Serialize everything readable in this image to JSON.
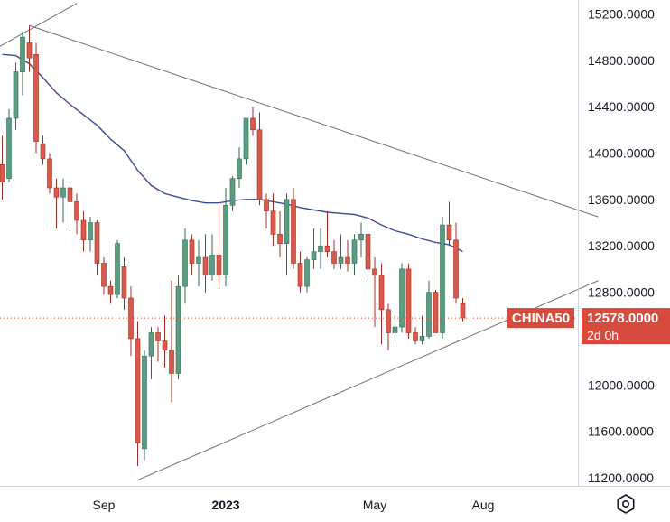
{
  "chart_data": {
    "type": "candlestick",
    "symbol": "CHINA50",
    "last_price": "12578.0000",
    "countdown": "2d 0h",
    "ylim": [
      11130,
      15320
    ],
    "y_ticks": [
      "15200.0000",
      "14800.0000",
      "14400.0000",
      "14000.0000",
      "13600.0000",
      "13200.0000",
      "12800.0000",
      "12400.0000",
      "12000.0000",
      "11600.0000",
      "11200.0000"
    ],
    "x_ticks": [
      {
        "label": "Sep",
        "index": 15,
        "bold": false
      },
      {
        "label": "2023",
        "index": 33,
        "bold": true
      },
      {
        "label": "May",
        "index": 55,
        "bold": false
      },
      {
        "label": "Aug",
        "index": 71,
        "bold": false
      }
    ],
    "candles": [
      [
        13900,
        14150,
        13600,
        13750
      ],
      [
        13780,
        14380,
        13750,
        14300
      ],
      [
        14300,
        14780,
        14200,
        14700
      ],
      [
        14700,
        15050,
        14500,
        15000
      ],
      [
        14950,
        15100,
        14700,
        14820
      ],
      [
        14850,
        14950,
        14000,
        14100
      ],
      [
        14080,
        14150,
        13900,
        13950
      ],
      [
        13950,
        14000,
        13650,
        13700
      ],
      [
        13700,
        13780,
        13350,
        13620
      ],
      [
        13620,
        13780,
        13400,
        13700
      ],
      [
        13700,
        13750,
        13350,
        13580
      ],
      [
        13580,
        13650,
        13300,
        13420
      ],
      [
        13420,
        13500,
        13150,
        13250
      ],
      [
        13250,
        13450,
        13150,
        13400
      ],
      [
        13400,
        13420,
        12950,
        13050
      ],
      [
        13050,
        13100,
        12780,
        12850
      ],
      [
        12850,
        12900,
        12700,
        12780
      ],
      [
        12780,
        13250,
        12750,
        13220
      ],
      [
        13020,
        13100,
        12650,
        12750
      ],
      [
        12750,
        12850,
        12250,
        12400
      ],
      [
        12400,
        12550,
        11300,
        11500
      ],
      [
        11450,
        12300,
        11350,
        12250
      ],
      [
        12250,
        12500,
        12050,
        12450
      ],
      [
        12450,
        12500,
        12200,
        12380
      ],
      [
        12380,
        12600,
        12150,
        12300
      ],
      [
        12300,
        12900,
        11850,
        12100
      ],
      [
        12100,
        12950,
        12050,
        12850
      ],
      [
        12850,
        13350,
        12700,
        13250
      ],
      [
        13250,
        13300,
        12950,
        13050
      ],
      [
        13050,
        13250,
        12850,
        13100
      ],
      [
        13100,
        13300,
        12800,
        12950
      ],
      [
        12950,
        13300,
        12900,
        13120
      ],
      [
        13120,
        13550,
        12850,
        12950
      ],
      [
        12950,
        13700,
        12850,
        13550
      ],
      [
        13550,
        13800,
        13500,
        13780
      ],
      [
        13780,
        14050,
        13700,
        13950
      ],
      [
        13950,
        14300,
        13900,
        14300
      ],
      [
        14300,
        14400,
        14150,
        14200
      ],
      [
        14200,
        14350,
        13550,
        13600
      ],
      [
        13600,
        13650,
        13350,
        13500
      ],
      [
        13500,
        13650,
        13200,
        13300
      ],
      [
        13300,
        13500,
        13100,
        13220
      ],
      [
        13220,
        13650,
        12950,
        13600
      ],
      [
        13600,
        13700,
        13000,
        13050
      ],
      [
        13050,
        13150,
        12800,
        12850
      ],
      [
        12850,
        13100,
        12800,
        13080
      ],
      [
        13080,
        13350,
        13000,
        13150
      ],
      [
        13150,
        13350,
        13000,
        13200
      ],
      [
        13200,
        13500,
        13100,
        13150
      ],
      [
        13150,
        13250,
        13000,
        13050
      ],
      [
        13050,
        13300,
        13000,
        13100
      ],
      [
        13100,
        13250,
        12980,
        13050
      ],
      [
        13050,
        13300,
        12950,
        13250
      ],
      [
        13250,
        13400,
        13100,
        13300
      ],
      [
        13300,
        13450,
        12900,
        13000
      ],
      [
        13000,
        13100,
        12500,
        12950
      ],
      [
        12950,
        13050,
        12350,
        12650
      ],
      [
        12650,
        12700,
        12300,
        12450
      ],
      [
        12450,
        12600,
        12350,
        12500
      ],
      [
        12500,
        13050,
        12450,
        13000
      ],
      [
        13000,
        13050,
        12400,
        12450
      ],
      [
        12450,
        12500,
        12350,
        12380
      ],
      [
        12380,
        12600,
        12350,
        12420
      ],
      [
        12420,
        12900,
        12400,
        12800
      ],
      [
        12800,
        12820,
        12450,
        12450
      ],
      [
        12450,
        13450,
        12400,
        13380
      ],
      [
        13380,
        13580,
        13200,
        13250
      ],
      [
        13250,
        13400,
        12700,
        12750
      ],
      [
        12700,
        12750,
        12550,
        12578
      ]
    ],
    "ma_line": [
      [
        0,
        14850
      ],
      [
        2,
        14840
      ],
      [
        4,
        14770
      ],
      [
        6,
        14650
      ],
      [
        8,
        14520
      ],
      [
        10,
        14420
      ],
      [
        12,
        14330
      ],
      [
        14,
        14240
      ],
      [
        16,
        14120
      ],
      [
        18,
        14020
      ],
      [
        20,
        13850
      ],
      [
        22,
        13720
      ],
      [
        24,
        13650
      ],
      [
        26,
        13620
      ],
      [
        28,
        13590
      ],
      [
        30,
        13570
      ],
      [
        32,
        13570
      ],
      [
        34,
        13590
      ],
      [
        36,
        13600
      ],
      [
        38,
        13600
      ],
      [
        40,
        13580
      ],
      [
        42,
        13560
      ],
      [
        44,
        13530
      ],
      [
        46,
        13510
      ],
      [
        48,
        13490
      ],
      [
        50,
        13480
      ],
      [
        52,
        13470
      ],
      [
        54,
        13440
      ],
      [
        56,
        13380
      ],
      [
        58,
        13330
      ],
      [
        60,
        13300
      ],
      [
        62,
        13260
      ],
      [
        64,
        13230
      ],
      [
        66,
        13210
      ],
      [
        68,
        13150
      ]
    ],
    "trendlines": [
      {
        "from": [
          -1,
          14900
        ],
        "to": [
          11,
          15290
        ],
        "color": "#707070"
      },
      {
        "from": [
          4,
          15100
        ],
        "to": [
          88,
          13450
        ],
        "color": "#707070"
      },
      {
        "from": [
          20,
          11180
        ],
        "to": [
          88,
          12900
        ],
        "color": "#707070"
      }
    ],
    "colors": {
      "up": "#5a9e81",
      "up_border": "#2e6b50",
      "down": "#d9594c",
      "down_border": "#9c2f25",
      "ma": "#3a4d94",
      "tag": "#d64b3e",
      "grid": "#e0e3eb",
      "axis_text": "#131722"
    },
    "settings_icon": "settings-hexagon-icon"
  }
}
